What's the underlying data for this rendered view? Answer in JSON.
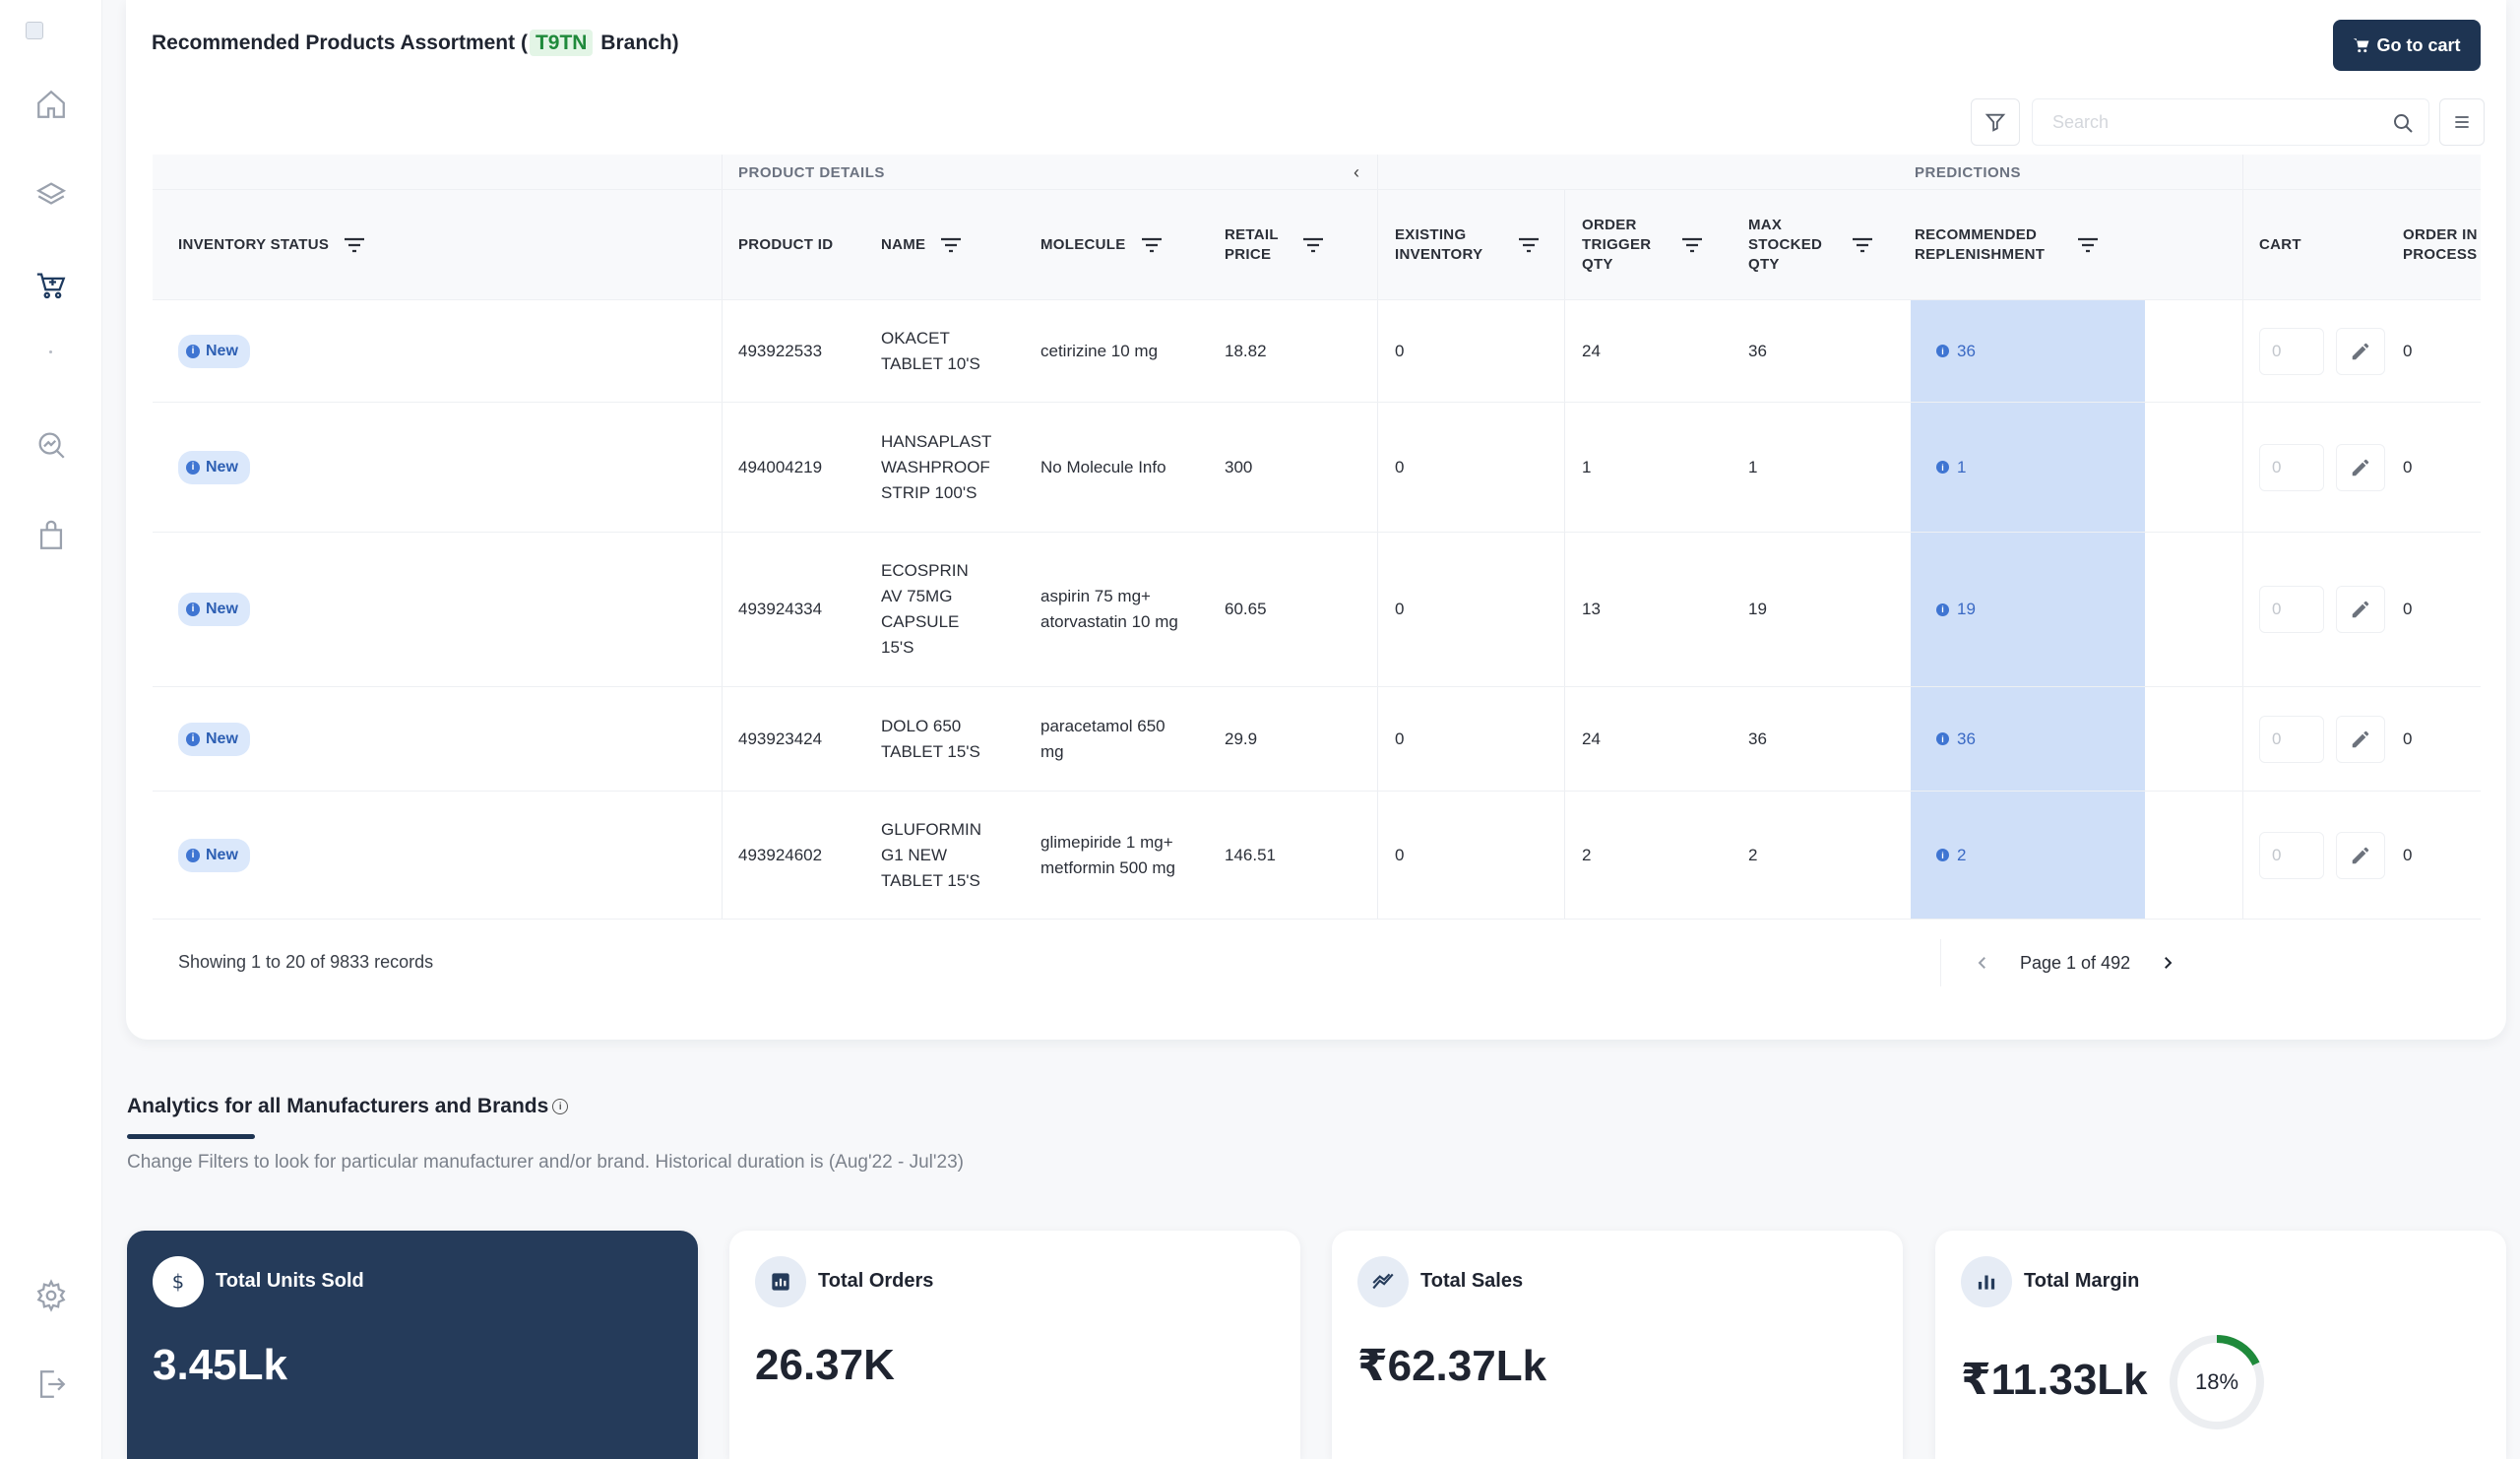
{
  "sidebar": {
    "items": [
      {
        "name": "home",
        "icon": "home-icon"
      },
      {
        "name": "layers",
        "icon": "layers-icon"
      },
      {
        "name": "cart",
        "icon": "cart-icon",
        "active": true
      },
      {
        "name": "analytics",
        "icon": "search-analytics-icon"
      },
      {
        "name": "bag",
        "icon": "bag-icon"
      },
      {
        "name": "settings",
        "icon": "gear-icon"
      },
      {
        "name": "logout",
        "icon": "logout-icon"
      }
    ]
  },
  "header": {
    "title_prefix": "Recommended Products Assortment (",
    "branch_code": "T9TN",
    "title_suffix": " Branch)",
    "go_to_cart": "Go to cart"
  },
  "toolbar": {
    "search_placeholder": "Search"
  },
  "table": {
    "groups": {
      "product_details": "PRODUCT DETAILS",
      "predictions": "PREDICTIONS"
    },
    "columns": {
      "inventory_status": "INVENTORY STATUS",
      "product_id": "PRODUCT ID",
      "name": "NAME",
      "molecule": "MOLECULE",
      "retail_price": "RETAIL PRICE",
      "existing_inventory": "EXISTING INVENTORY",
      "order_trigger_qty": "ORDER TRIGGER QTY",
      "max_stocked_qty": "MAX STOCKED QTY",
      "recommended_replenishment": "RECOMMENDED REPLENISHMENT",
      "cart": "CART",
      "order_in_process": "ORDER IN PROCESS"
    },
    "rows": [
      {
        "status": "New",
        "product_id": "493922533",
        "name": "OKACET TABLET 10'S",
        "molecule": "cetirizine 10 mg",
        "retail_price": "18.82",
        "existing_inventory": "0",
        "order_trigger_qty": "24",
        "max_stocked_qty": "36",
        "recommended": "36",
        "cart_qty": "0",
        "order_in_process": "0"
      },
      {
        "status": "New",
        "product_id": "494004219",
        "name": "HANSAPLAST WASHPROOF STRIP 100'S",
        "molecule": "No Molecule Info",
        "retail_price": "300",
        "existing_inventory": "0",
        "order_trigger_qty": "1",
        "max_stocked_qty": "1",
        "recommended": "1",
        "cart_qty": "0",
        "order_in_process": "0"
      },
      {
        "status": "New",
        "product_id": "493924334",
        "name": "ECOSPRIN AV 75MG CAPSULE 15'S",
        "molecule": "aspirin 75 mg+ atorvastatin 10 mg",
        "retail_price": "60.65",
        "existing_inventory": "0",
        "order_trigger_qty": "13",
        "max_stocked_qty": "19",
        "recommended": "19",
        "cart_qty": "0",
        "order_in_process": "0"
      },
      {
        "status": "New",
        "product_id": "493923424",
        "name": "DOLO 650 TABLET 15'S",
        "molecule": "paracetamol 650 mg",
        "retail_price": "29.9",
        "existing_inventory": "0",
        "order_trigger_qty": "24",
        "max_stocked_qty": "36",
        "recommended": "36",
        "cart_qty": "0",
        "order_in_process": "0"
      },
      {
        "status": "New",
        "product_id": "493924602",
        "name": "GLUFORMIN G1 NEW TABLET 15'S",
        "molecule": "glimepiride 1 mg+ metformin 500 mg",
        "retail_price": "146.51",
        "existing_inventory": "0",
        "order_trigger_qty": "2",
        "max_stocked_qty": "2",
        "recommended": "2",
        "cart_qty": "0",
        "order_in_process": "0"
      }
    ],
    "records_text": "Showing 1 to 20 of 9833 records",
    "page_text": "Page 1 of 492"
  },
  "analytics": {
    "title": "Analytics for all Manufacturers and Brands",
    "subtitle": "Change Filters to look for particular manufacturer and/or brand. Historical duration is (Aug'22 - Jul'23)",
    "kpis": [
      {
        "label": "Total Units Sold",
        "value": "3.45Lk",
        "icon": "dollar-icon"
      },
      {
        "label": "Total Orders",
        "value": "26.37K",
        "icon": "bar-chart-icon"
      },
      {
        "label": "Total Sales",
        "value": "₹62.37Lk",
        "icon": "trend-icon"
      },
      {
        "label": "Total Margin",
        "value": "₹11.33Lk",
        "icon": "column-chart-icon",
        "percent": "18%",
        "percent_value": 18
      }
    ]
  },
  "colors": {
    "accent": "#1e3452",
    "badge_bg": "#dbe8fb",
    "recommended_bg": "#cfdff8",
    "ring_progress": "#1f8a3b"
  }
}
